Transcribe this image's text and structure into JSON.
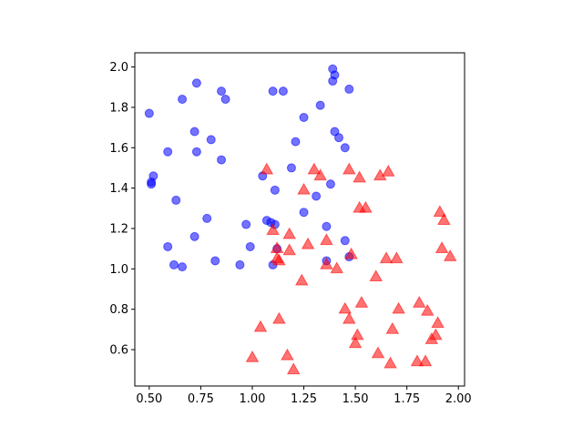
{
  "chart_data": {
    "type": "scatter",
    "title": "",
    "xlabel": "",
    "ylabel": "",
    "xlim": [
      0.43,
      2.03
    ],
    "ylim": [
      0.42,
      2.07
    ],
    "xticks": [
      0.5,
      0.75,
      1.0,
      1.25,
      1.5,
      1.75,
      2.0
    ],
    "xtick_labels": [
      "0.50",
      "0.75",
      "1.00",
      "1.25",
      "1.50",
      "1.75",
      "2.00"
    ],
    "yticks": [
      0.6,
      0.8,
      1.0,
      1.2,
      1.4,
      1.6,
      1.8,
      2.0
    ],
    "ytick_labels": [
      "0.6",
      "0.8",
      "1.0",
      "1.2",
      "1.4",
      "1.6",
      "1.8",
      "2.0"
    ],
    "grid": false,
    "legend": "none",
    "series": [
      {
        "marker": "circle",
        "color": "#0000ff",
        "alpha": 0.55,
        "points": [
          [
            0.5,
            1.77
          ],
          [
            0.51,
            1.42
          ],
          [
            0.52,
            1.46
          ],
          [
            0.51,
            1.43
          ],
          [
            0.59,
            1.58
          ],
          [
            0.63,
            1.34
          ],
          [
            0.66,
            1.84
          ],
          [
            0.72,
            1.68
          ],
          [
            0.73,
            1.92
          ],
          [
            0.73,
            1.58
          ],
          [
            0.8,
            1.64
          ],
          [
            0.85,
            1.88
          ],
          [
            0.85,
            1.54
          ],
          [
            0.87,
            1.84
          ],
          [
            0.78,
            1.25
          ],
          [
            0.72,
            1.16
          ],
          [
            0.59,
            1.11
          ],
          [
            0.62,
            1.02
          ],
          [
            0.66,
            1.01
          ],
          [
            0.82,
            1.04
          ],
          [
            0.94,
            1.02
          ],
          [
            0.97,
            1.22
          ],
          [
            0.99,
            1.11
          ],
          [
            1.05,
            1.46
          ],
          [
            1.07,
            1.24
          ],
          [
            1.09,
            1.23
          ],
          [
            1.11,
            1.22
          ],
          [
            1.11,
            1.39
          ],
          [
            1.1,
            1.88
          ],
          [
            1.15,
            1.88
          ],
          [
            1.19,
            1.5
          ],
          [
            1.21,
            1.63
          ],
          [
            1.25,
            1.75
          ],
          [
            1.25,
            1.28
          ],
          [
            1.31,
            1.36
          ],
          [
            1.33,
            1.81
          ],
          [
            1.36,
            1.21
          ],
          [
            1.38,
            1.42
          ],
          [
            1.39,
            1.99
          ],
          [
            1.4,
            1.96
          ],
          [
            1.39,
            1.93
          ],
          [
            1.4,
            1.68
          ],
          [
            1.42,
            1.65
          ],
          [
            1.45,
            1.6
          ],
          [
            1.47,
            1.89
          ],
          [
            1.45,
            1.14
          ],
          [
            1.47,
            1.06
          ],
          [
            1.36,
            1.04
          ],
          [
            1.12,
            1.1
          ],
          [
            1.1,
            1.02
          ]
        ]
      },
      {
        "marker": "triangle",
        "color": "#ff0000",
        "alpha": 0.55,
        "points": [
          [
            1.07,
            1.49
          ],
          [
            1.1,
            1.19
          ],
          [
            1.12,
            1.1
          ],
          [
            1.12,
            1.05
          ],
          [
            1.13,
            1.04
          ],
          [
            1.18,
            1.17
          ],
          [
            1.18,
            1.09
          ],
          [
            1.24,
            0.94
          ],
          [
            1.25,
            1.39
          ],
          [
            1.27,
            1.12
          ],
          [
            1.3,
            1.49
          ],
          [
            1.33,
            1.46
          ],
          [
            1.36,
            1.14
          ],
          [
            1.36,
            1.02
          ],
          [
            1.41,
            1.0
          ],
          [
            1.45,
            0.8
          ],
          [
            1.47,
            0.75
          ],
          [
            1.47,
            1.49
          ],
          [
            1.48,
            1.07
          ],
          [
            1.5,
            0.63
          ],
          [
            1.51,
            0.67
          ],
          [
            1.52,
            1.45
          ],
          [
            1.52,
            1.3
          ],
          [
            1.53,
            0.83
          ],
          [
            1.55,
            1.3
          ],
          [
            1.6,
            0.96
          ],
          [
            1.61,
            0.58
          ],
          [
            1.62,
            1.46
          ],
          [
            1.65,
            1.05
          ],
          [
            1.66,
            1.48
          ],
          [
            1.67,
            0.53
          ],
          [
            1.68,
            0.7
          ],
          [
            1.7,
            1.05
          ],
          [
            1.71,
            0.8
          ],
          [
            1.8,
            0.54
          ],
          [
            1.81,
            0.83
          ],
          [
            1.84,
            0.54
          ],
          [
            1.85,
            0.79
          ],
          [
            1.87,
            0.65
          ],
          [
            1.89,
            0.67
          ],
          [
            1.9,
            0.73
          ],
          [
            1.91,
            1.28
          ],
          [
            1.92,
            1.1
          ],
          [
            1.93,
            1.24
          ],
          [
            1.96,
            1.06
          ],
          [
            1.04,
            0.71
          ],
          [
            1.13,
            0.75
          ],
          [
            1.17,
            0.57
          ],
          [
            1.0,
            0.56
          ],
          [
            1.2,
            0.5
          ]
        ]
      }
    ]
  }
}
